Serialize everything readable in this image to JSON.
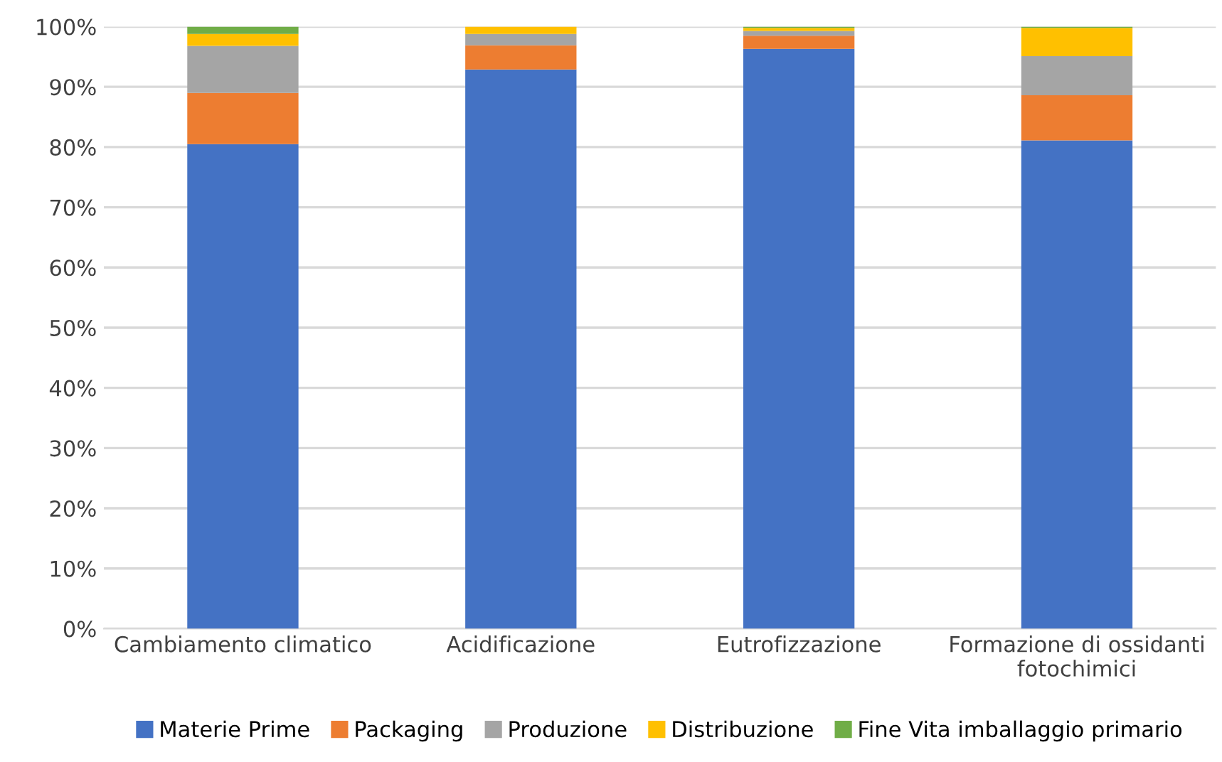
{
  "chart_data": {
    "type": "bar",
    "stacked": true,
    "categories": [
      "Cambiamento climatico",
      "Acidificazione",
      "Eutrofizzazione",
      "Formazione di ossidanti fotochimici"
    ],
    "series": [
      {
        "name": "Materie Prime",
        "color": "#4472c4",
        "values": [
          80.5,
          92.9,
          96.3,
          81.1
        ]
      },
      {
        "name": "Packaging",
        "color": "#ed7d31",
        "values": [
          8.5,
          4.0,
          2.2,
          7.5
        ]
      },
      {
        "name": "Produzione",
        "color": "#a5a5a5",
        "values": [
          7.8,
          1.9,
          0.8,
          6.5
        ]
      },
      {
        "name": "Distribuzione",
        "color": "#ffc000",
        "values": [
          2.0,
          1.2,
          0.5,
          4.7
        ]
      },
      {
        "name": "Fine Vita imballaggio primario",
        "color": "#70ad47",
        "values": [
          1.2,
          0.0,
          0.2,
          0.2
        ]
      }
    ],
    "ylim": [
      0,
      100
    ],
    "yticks": [
      {
        "value": 0,
        "label": "0%"
      },
      {
        "value": 10,
        "label": "10%"
      },
      {
        "value": 20,
        "label": "20%"
      },
      {
        "value": 30,
        "label": "30%"
      },
      {
        "value": 40,
        "label": "40%"
      },
      {
        "value": 50,
        "label": "50%"
      },
      {
        "value": 60,
        "label": "60%"
      },
      {
        "value": 70,
        "label": "70%"
      },
      {
        "value": 80,
        "label": "80%"
      },
      {
        "value": 90,
        "label": "90%"
      },
      {
        "value": 100,
        "label": "100%"
      }
    ],
    "grid": "y",
    "legend": "bottom"
  }
}
